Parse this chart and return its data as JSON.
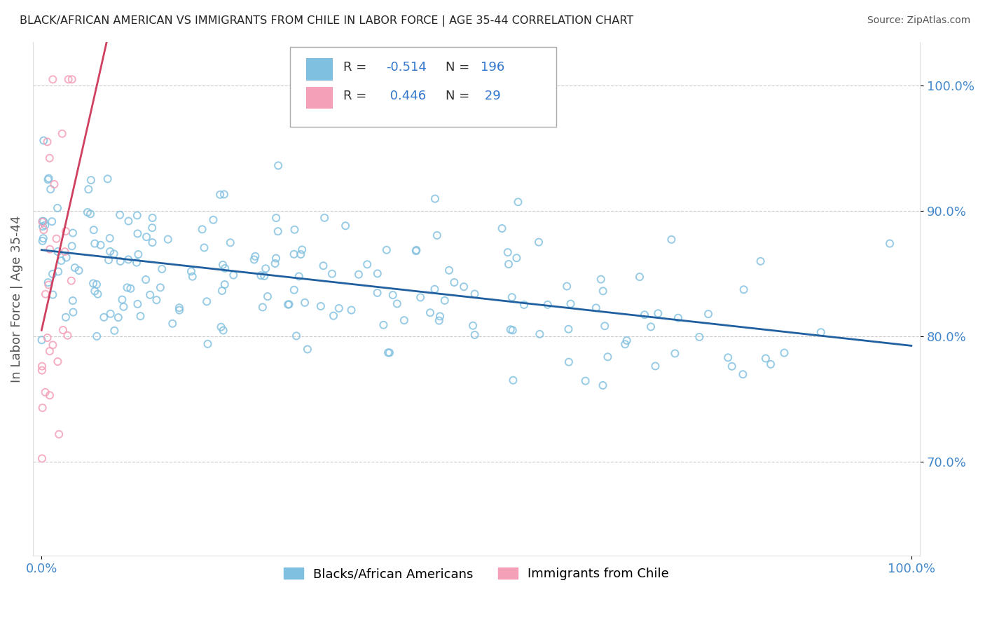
{
  "title": "BLACK/AFRICAN AMERICAN VS IMMIGRANTS FROM CHILE IN LABOR FORCE | AGE 35-44 CORRELATION CHART",
  "source": "Source: ZipAtlas.com",
  "ylabel": "In Labor Force | Age 35-44",
  "ymin": 0.625,
  "ymax": 1.035,
  "xmin": -0.01,
  "xmax": 1.01,
  "yticks": [
    0.7,
    0.8,
    0.9,
    1.0
  ],
  "ytick_labels": [
    "70.0%",
    "80.0%",
    "90.0%",
    "100.0%"
  ],
  "blue_color": "#7fbfdf",
  "pink_color": "#f4a0b8",
  "blue_line_color": "#2060a0",
  "pink_line_color": "#d04060",
  "R_blue": -0.514,
  "N_blue": 196,
  "R_pink": 0.446,
  "N_pink": 29,
  "legend_label_blue": "Blacks/African Americans",
  "legend_label_pink": "Immigrants from Chile",
  "blue_seed": 42,
  "pink_seed": 7,
  "background_color": "#ffffff",
  "grid_color": "#cccccc",
  "title_color": "#222222",
  "source_color": "#555555",
  "axis_label_color": "#555555",
  "tick_label_color": "#4488cc",
  "marker_size": 9,
  "marker_linewidth": 1.4,
  "line_width": 2.0
}
